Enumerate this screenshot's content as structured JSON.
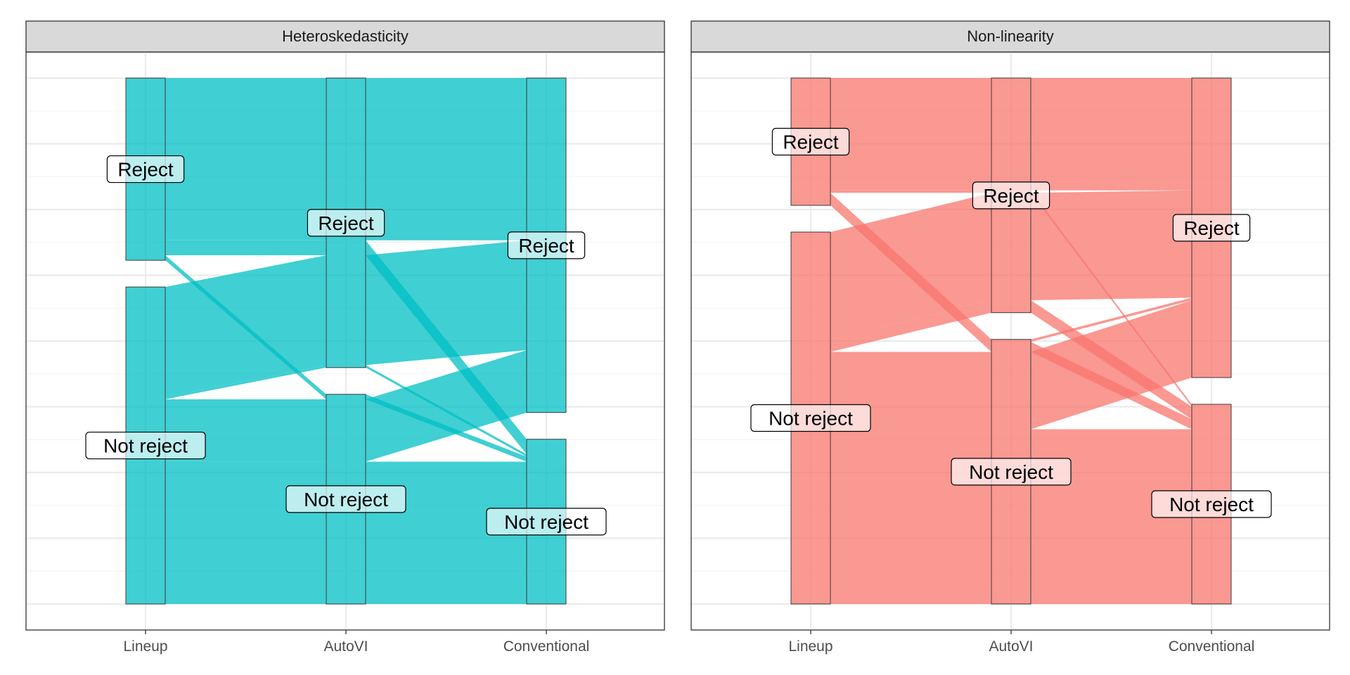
{
  "chart_data": [
    {
      "type": "alluvial",
      "title": "Heteroskedasticity",
      "axes": [
        "Lineup",
        "AutoVI",
        "Conventional"
      ],
      "strata": [
        "Reject",
        "Not reject"
      ],
      "color": "#00BFC4",
      "flows": [
        {
          "Lineup": "Reject",
          "AutoVI": "Reject",
          "Conventional": "Reject",
          "weight": 32.5
        },
        {
          "Lineup": "Reject",
          "AutoVI": "Not reject",
          "Conventional": "Not reject",
          "weight": 1.0
        },
        {
          "Lineup": "Reject",
          "AutoVI": "Reject",
          "Conventional": "Not reject",
          "weight": 3.0
        },
        {
          "Lineup": "Not reject",
          "AutoVI": "Reject",
          "Conventional": "Reject",
          "weight": 22.0
        },
        {
          "Lineup": "Not reject",
          "AutoVI": "Reject",
          "Conventional": "Not reject",
          "weight": 0.5
        },
        {
          "Lineup": "Not reject",
          "AutoVI": "Not reject",
          "Conventional": "Reject",
          "weight": 12.5
        },
        {
          "Lineup": "Not reject",
          "AutoVI": "Not reject",
          "Conventional": "Not reject",
          "weight": 28.5
        }
      ]
    },
    {
      "type": "alluvial",
      "title": "Non-linearity",
      "axes": [
        "Lineup",
        "AutoVI",
        "Conventional"
      ],
      "strata": [
        "Reject",
        "Not reject"
      ],
      "color": "#F8766D",
      "flows": [
        {
          "Lineup": "Reject",
          "AutoVI": "Reject",
          "Conventional": "Reject",
          "weight": 22.5
        },
        {
          "Lineup": "Reject",
          "AutoVI": "Not reject",
          "Conventional": "Not reject",
          "weight": 2.0
        },
        {
          "Lineup": "Reject",
          "AutoVI": "Not reject",
          "Conventional": "Reject",
          "weight": 0.5
        },
        {
          "Lineup": "Reject",
          "AutoVI": "Reject",
          "Conventional": "Not reject",
          "weight": 0.5
        },
        {
          "Lineup": "Not reject",
          "AutoVI": "Reject",
          "Conventional": "Reject",
          "weight": 21.5
        },
        {
          "Lineup": "Not reject",
          "AutoVI": "Reject",
          "Conventional": "Not reject",
          "weight": 2.5
        },
        {
          "Lineup": "Not reject",
          "AutoVI": "Not reject",
          "Conventional": "Reject",
          "weight": 15.5
        },
        {
          "Lineup": "Not reject",
          "AutoVI": "Not reject",
          "Conventional": "Not reject",
          "weight": 35.0
        }
      ]
    }
  ]
}
